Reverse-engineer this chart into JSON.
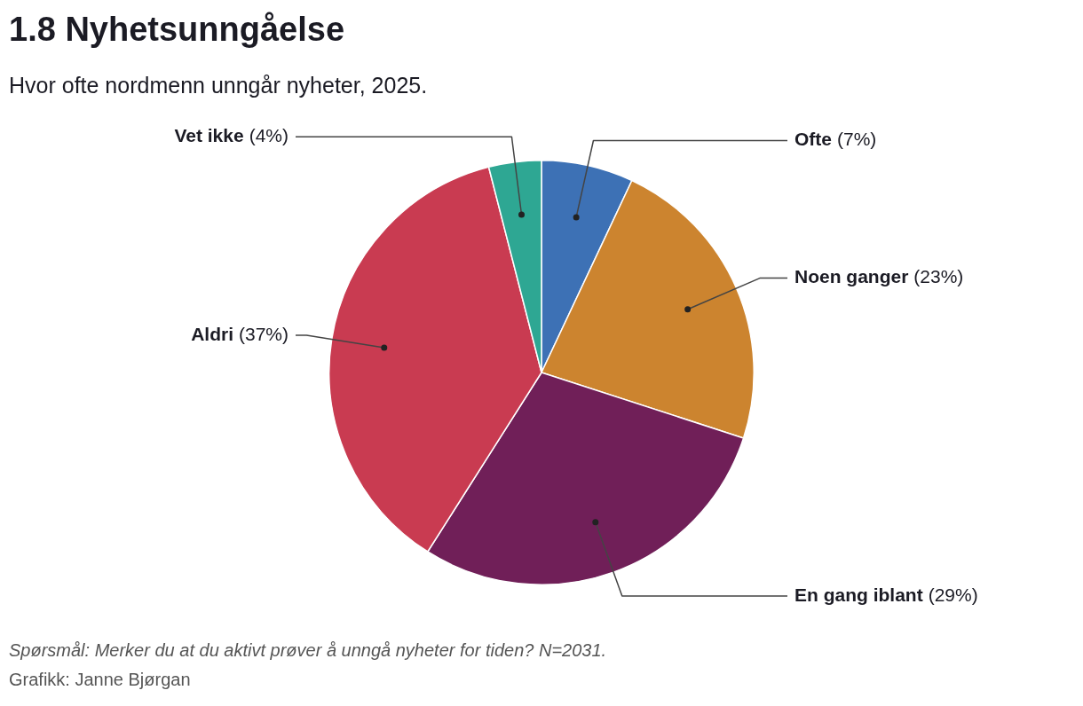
{
  "chart_data": {
    "type": "pie",
    "title": "1.8 Nyhetsunngåelse",
    "subtitle": "Hvor ofte nordmenn unngår nyheter, 2025.",
    "categories": [
      "Ofte",
      "Noen ganger",
      "En gang iblant",
      "Aldri",
      "Vet ikke"
    ],
    "values": [
      7,
      23,
      29,
      37,
      4
    ],
    "value_labels": [
      "(7%)",
      "(23%)",
      "(29%)",
      "(37%)",
      "(4%)"
    ],
    "colors": [
      "#3d71b5",
      "#cc842f",
      "#701f58",
      "#c93b51",
      "#2ea793"
    ],
    "legend": false,
    "annotations": [
      "Spørsmål: Merker du at du aktivt prøver å unngå nyheter for tiden? N=2031.",
      "Grafikk: Janne Bjørgan"
    ]
  }
}
